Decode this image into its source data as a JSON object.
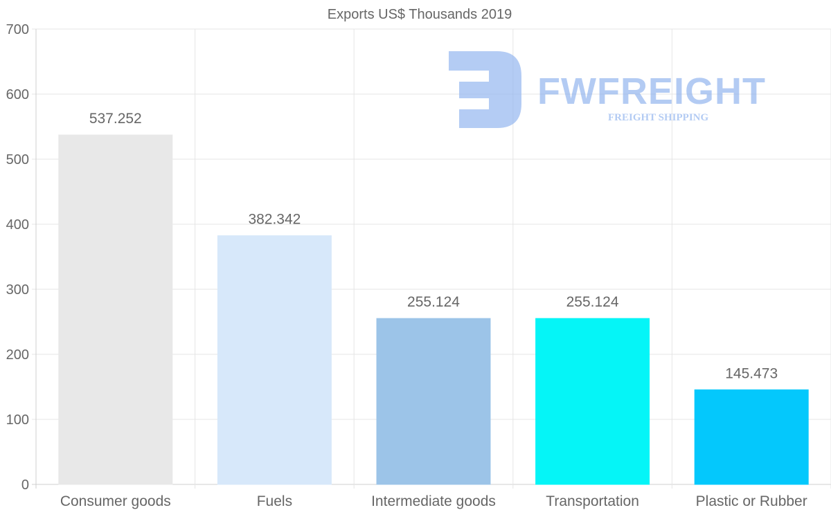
{
  "chart_data": {
    "type": "bar",
    "title": "Exports US$ Thousands 2019",
    "categories": [
      "Consumer goods",
      "Fuels",
      "Intermediate goods",
      "Transportation",
      "Plastic or Rubber"
    ],
    "values": [
      537.252,
      382.342,
      255.124,
      255.124,
      145.473
    ],
    "value_labels": [
      "537.252",
      "382.342",
      "255.124",
      "255.124",
      "145.473"
    ],
    "colors": [
      "#e8e8e8",
      "#d7e8fa",
      "#9cc4e8",
      "#05f5f7",
      "#04c8fc"
    ],
    "xlabel": "",
    "ylabel": "",
    "ylim": [
      0,
      700
    ],
    "yticks": [
      0,
      100,
      200,
      300,
      400,
      500,
      600,
      700
    ],
    "grid": true,
    "legend": "none"
  },
  "watermark": {
    "name": "FWFREIGHT",
    "tagline": "FREIGHT SHIPPING",
    "color": "#8cb0ee"
  }
}
